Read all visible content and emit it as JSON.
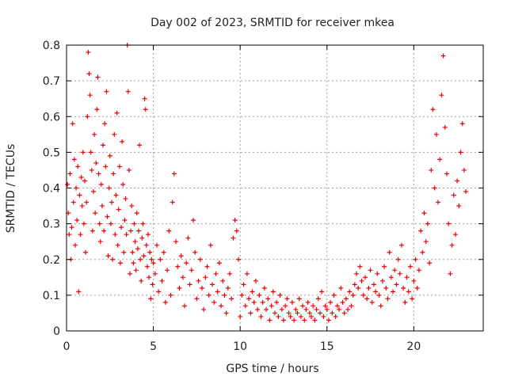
{
  "chart_data": {
    "type": "scatter",
    "title": "Day 002 of 2023, SRMTID for receiver mkea",
    "xlabel": "GPS time / hours",
    "ylabel": "SRMTID / TECUs",
    "xlim": [
      0,
      24
    ],
    "ylim": [
      0,
      0.8
    ],
    "x_ticks": [
      0,
      5,
      10,
      15,
      20
    ],
    "x_tick_labels": [
      "0",
      "5",
      "10",
      "15",
      "20"
    ],
    "y_ticks": [
      0,
      0.1,
      0.2,
      0.3,
      0.4,
      0.5,
      0.6,
      0.7,
      0.8
    ],
    "y_tick_labels": [
      "0",
      "0.1",
      "0.2",
      "0.3",
      "0.4",
      "0.5",
      "0.6",
      "0.7",
      "0.8"
    ],
    "grid": true,
    "marker": "+",
    "series": [
      {
        "name": "mkea",
        "color": "#ee0000",
        "points": [
          [
            0.05,
            0.41
          ],
          [
            0.1,
            0.33
          ],
          [
            0.15,
            0.27
          ],
          [
            0.2,
            0.44
          ],
          [
            0.25,
            0.2
          ],
          [
            0.3,
            0.29
          ],
          [
            0.35,
            0.58
          ],
          [
            0.4,
            0.36
          ],
          [
            0.45,
            0.48
          ],
          [
            0.5,
            0.24
          ],
          [
            0.55,
            0.4
          ],
          [
            0.6,
            0.31
          ],
          [
            0.65,
            0.46
          ],
          [
            0.7,
            0.11
          ],
          [
            0.75,
            0.38
          ],
          [
            0.8,
            0.27
          ],
          [
            0.85,
            0.43
          ],
          [
            0.9,
            0.35
          ],
          [
            0.95,
            0.5
          ],
          [
            1.0,
            0.3
          ],
          [
            1.05,
            0.42
          ],
          [
            1.1,
            0.22
          ],
          [
            1.15,
            0.36
          ],
          [
            1.2,
            0.6
          ],
          [
            1.25,
            0.78
          ],
          [
            1.3,
            0.72
          ],
          [
            1.35,
            0.66
          ],
          [
            1.4,
            0.5
          ],
          [
            1.45,
            0.45
          ],
          [
            1.5,
            0.28
          ],
          [
            1.55,
            0.39
          ],
          [
            1.6,
            0.55
          ],
          [
            1.65,
            0.33
          ],
          [
            1.7,
            0.47
          ],
          [
            1.75,
            0.62
          ],
          [
            1.8,
            0.71
          ],
          [
            1.85,
            0.44
          ],
          [
            1.9,
            0.3
          ],
          [
            1.95,
            0.25
          ],
          [
            2.0,
            0.41
          ],
          [
            2.05,
            0.35
          ],
          [
            2.1,
            0.52
          ],
          [
            2.15,
            0.28
          ],
          [
            2.2,
            0.58
          ],
          [
            2.25,
            0.46
          ],
          [
            2.3,
            0.67
          ],
          [
            2.35,
            0.32
          ],
          [
            2.4,
            0.21
          ],
          [
            2.45,
            0.4
          ],
          [
            2.5,
            0.49
          ],
          [
            2.55,
            0.3
          ],
          [
            2.6,
            0.36
          ],
          [
            2.65,
            0.2
          ],
          [
            2.7,
            0.44
          ],
          [
            2.75,
            0.55
          ],
          [
            2.8,
            0.27
          ],
          [
            2.85,
            0.38
          ],
          [
            2.9,
            0.61
          ],
          [
            2.95,
            0.24
          ],
          [
            3.0,
            0.34
          ],
          [
            3.05,
            0.46
          ],
          [
            3.1,
            0.19
          ],
          [
            3.15,
            0.29
          ],
          [
            3.2,
            0.53
          ],
          [
            3.25,
            0.41
          ],
          [
            3.3,
            0.22
          ],
          [
            3.35,
            0.31
          ],
          [
            3.4,
            0.37
          ],
          [
            3.45,
            0.27
          ],
          [
            3.5,
            0.8
          ],
          [
            3.55,
            0.67
          ],
          [
            3.6,
            0.45
          ],
          [
            3.65,
            0.16
          ],
          [
            3.7,
            0.28
          ],
          [
            3.75,
            0.35
          ],
          [
            3.8,
            0.22
          ],
          [
            3.85,
            0.19
          ],
          [
            3.9,
            0.3
          ],
          [
            3.95,
            0.25
          ],
          [
            4.0,
            0.17
          ],
          [
            4.05,
            0.33
          ],
          [
            4.1,
            0.23
          ],
          [
            4.15,
            0.28
          ],
          [
            4.2,
            0.52
          ],
          [
            4.25,
            0.2
          ],
          [
            4.3,
            0.14
          ],
          [
            4.35,
            0.26
          ],
          [
            4.4,
            0.3
          ],
          [
            4.45,
            0.21
          ],
          [
            4.5,
            0.65
          ],
          [
            4.55,
            0.62
          ],
          [
            4.6,
            0.24
          ],
          [
            4.65,
            0.18
          ],
          [
            4.7,
            0.27
          ],
          [
            4.75,
            0.15
          ],
          [
            4.8,
            0.22
          ],
          [
            4.85,
            0.09
          ],
          [
            4.9,
            0.2
          ],
          [
            4.95,
            0.13
          ],
          [
            5.0,
            0.19
          ],
          [
            5.1,
            0.16
          ],
          [
            5.2,
            0.24
          ],
          [
            5.3,
            0.11
          ],
          [
            5.4,
            0.2
          ],
          [
            5.5,
            0.14
          ],
          [
            5.6,
            0.22
          ],
          [
            5.7,
            0.08
          ],
          [
            5.8,
            0.17
          ],
          [
            5.9,
            0.28
          ],
          [
            6.0,
            0.1
          ],
          [
            6.1,
            0.36
          ],
          [
            6.2,
            0.44
          ],
          [
            6.3,
            0.25
          ],
          [
            6.4,
            0.18
          ],
          [
            6.5,
            0.12
          ],
          [
            6.6,
            0.21
          ],
          [
            6.7,
            0.15
          ],
          [
            6.8,
            0.07
          ],
          [
            6.9,
            0.19
          ],
          [
            7.0,
            0.26
          ],
          [
            7.1,
            0.13
          ],
          [
            7.2,
            0.17
          ],
          [
            7.3,
            0.31
          ],
          [
            7.4,
            0.22
          ],
          [
            7.5,
            0.09
          ],
          [
            7.6,
            0.14
          ],
          [
            7.7,
            0.2
          ],
          [
            7.8,
            0.12
          ],
          [
            7.9,
            0.06
          ],
          [
            8.0,
            0.15
          ],
          [
            8.1,
            0.18
          ],
          [
            8.2,
            0.1
          ],
          [
            8.3,
            0.24
          ],
          [
            8.4,
            0.13
          ],
          [
            8.5,
            0.08
          ],
          [
            8.6,
            0.16
          ],
          [
            8.7,
            0.11
          ],
          [
            8.8,
            0.19
          ],
          [
            8.9,
            0.07
          ],
          [
            9.0,
            0.14
          ],
          [
            9.1,
            0.1
          ],
          [
            9.2,
            0.05
          ],
          [
            9.3,
            0.12
          ],
          [
            9.4,
            0.16
          ],
          [
            9.5,
            0.09
          ],
          [
            9.6,
            0.26
          ],
          [
            9.7,
            0.31
          ],
          [
            9.8,
            0.28
          ],
          [
            9.9,
            0.2
          ],
          [
            10.0,
            0.04
          ],
          [
            10.1,
            0.1
          ],
          [
            10.2,
            0.13
          ],
          [
            10.3,
            0.07
          ],
          [
            10.4,
            0.16
          ],
          [
            10.5,
            0.09
          ],
          [
            10.6,
            0.05
          ],
          [
            10.7,
            0.11
          ],
          [
            10.8,
            0.08
          ],
          [
            10.9,
            0.14
          ],
          [
            11.0,
            0.06
          ],
          [
            11.1,
            0.1
          ],
          [
            11.2,
            0.04
          ],
          [
            11.3,
            0.08
          ],
          [
            11.4,
            0.12
          ],
          [
            11.5,
            0.06
          ],
          [
            11.6,
            0.09
          ],
          [
            11.7,
            0.03
          ],
          [
            11.8,
            0.07
          ],
          [
            11.9,
            0.11
          ],
          [
            12.0,
            0.05
          ],
          [
            12.1,
            0.08
          ],
          [
            12.2,
            0.04
          ],
          [
            12.3,
            0.1
          ],
          [
            12.4,
            0.06
          ],
          [
            12.5,
            0.03
          ],
          [
            12.6,
            0.07
          ],
          [
            12.7,
            0.09
          ],
          [
            12.8,
            0.05
          ],
          [
            12.9,
            0.04
          ],
          [
            13.0,
            0.08
          ],
          [
            13.1,
            0.03
          ],
          [
            13.2,
            0.06
          ],
          [
            13.3,
            0.05
          ],
          [
            13.4,
            0.09
          ],
          [
            13.5,
            0.04
          ],
          [
            13.6,
            0.07
          ],
          [
            13.7,
            0.03
          ],
          [
            13.8,
            0.06
          ],
          [
            13.9,
            0.08
          ],
          [
            14.0,
            0.05
          ],
          [
            14.1,
            0.04
          ],
          [
            14.2,
            0.07
          ],
          [
            14.3,
            0.03
          ],
          [
            14.4,
            0.06
          ],
          [
            14.5,
            0.09
          ],
          [
            14.6,
            0.05
          ],
          [
            14.7,
            0.11
          ],
          [
            14.8,
            0.04
          ],
          [
            14.9,
            0.07
          ],
          [
            15.0,
            0.06
          ],
          [
            15.1,
            0.03
          ],
          [
            15.2,
            0.08
          ],
          [
            15.3,
            0.05
          ],
          [
            15.4,
            0.1
          ],
          [
            15.5,
            0.04
          ],
          [
            15.6,
            0.07
          ],
          [
            15.7,
            0.06
          ],
          [
            15.8,
            0.12
          ],
          [
            15.9,
            0.08
          ],
          [
            16.0,
            0.05
          ],
          [
            16.1,
            0.09
          ],
          [
            16.2,
            0.06
          ],
          [
            16.3,
            0.11
          ],
          [
            16.4,
            0.07
          ],
          [
            16.5,
            0.1
          ],
          [
            16.6,
            0.13
          ],
          [
            16.7,
            0.16
          ],
          [
            16.8,
            0.12
          ],
          [
            16.9,
            0.18
          ],
          [
            17.0,
            0.14
          ],
          [
            17.1,
            0.1
          ],
          [
            17.2,
            0.15
          ],
          [
            17.3,
            0.09
          ],
          [
            17.4,
            0.12
          ],
          [
            17.5,
            0.17
          ],
          [
            17.6,
            0.08
          ],
          [
            17.7,
            0.13
          ],
          [
            17.8,
            0.11
          ],
          [
            17.9,
            0.16
          ],
          [
            18.0,
            0.1
          ],
          [
            18.1,
            0.07
          ],
          [
            18.2,
            0.14
          ],
          [
            18.3,
            0.18
          ],
          [
            18.4,
            0.12
          ],
          [
            18.5,
            0.09
          ],
          [
            18.6,
            0.22
          ],
          [
            18.7,
            0.15
          ],
          [
            18.8,
            0.11
          ],
          [
            18.9,
            0.17
          ],
          [
            19.0,
            0.13
          ],
          [
            19.1,
            0.2
          ],
          [
            19.2,
            0.16
          ],
          [
            19.3,
            0.24
          ],
          [
            19.4,
            0.12
          ],
          [
            19.5,
            0.08
          ],
          [
            19.6,
            0.15
          ],
          [
            19.7,
            0.11
          ],
          [
            19.8,
            0.18
          ],
          [
            19.9,
            0.09
          ],
          [
            20.0,
            0.14
          ],
          [
            20.1,
            0.2
          ],
          [
            20.2,
            0.12
          ],
          [
            20.3,
            0.17
          ],
          [
            20.4,
            0.28
          ],
          [
            20.5,
            0.22
          ],
          [
            20.6,
            0.33
          ],
          [
            20.7,
            0.25
          ],
          [
            20.8,
            0.3
          ],
          [
            20.9,
            0.19
          ],
          [
            21.0,
            0.45
          ],
          [
            21.1,
            0.62
          ],
          [
            21.2,
            0.4
          ],
          [
            21.3,
            0.55
          ],
          [
            21.4,
            0.36
          ],
          [
            21.5,
            0.48
          ],
          [
            21.6,
            0.66
          ],
          [
            21.7,
            0.77
          ],
          [
            21.8,
            0.57
          ],
          [
            21.9,
            0.44
          ],
          [
            22.0,
            0.3
          ],
          [
            22.1,
            0.16
          ],
          [
            22.2,
            0.24
          ],
          [
            22.3,
            0.38
          ],
          [
            22.4,
            0.27
          ],
          [
            22.5,
            0.42
          ],
          [
            22.6,
            0.35
          ],
          [
            22.7,
            0.5
          ],
          [
            22.8,
            0.58
          ],
          [
            22.9,
            0.45
          ],
          [
            23.0,
            0.39
          ]
        ]
      }
    ]
  }
}
